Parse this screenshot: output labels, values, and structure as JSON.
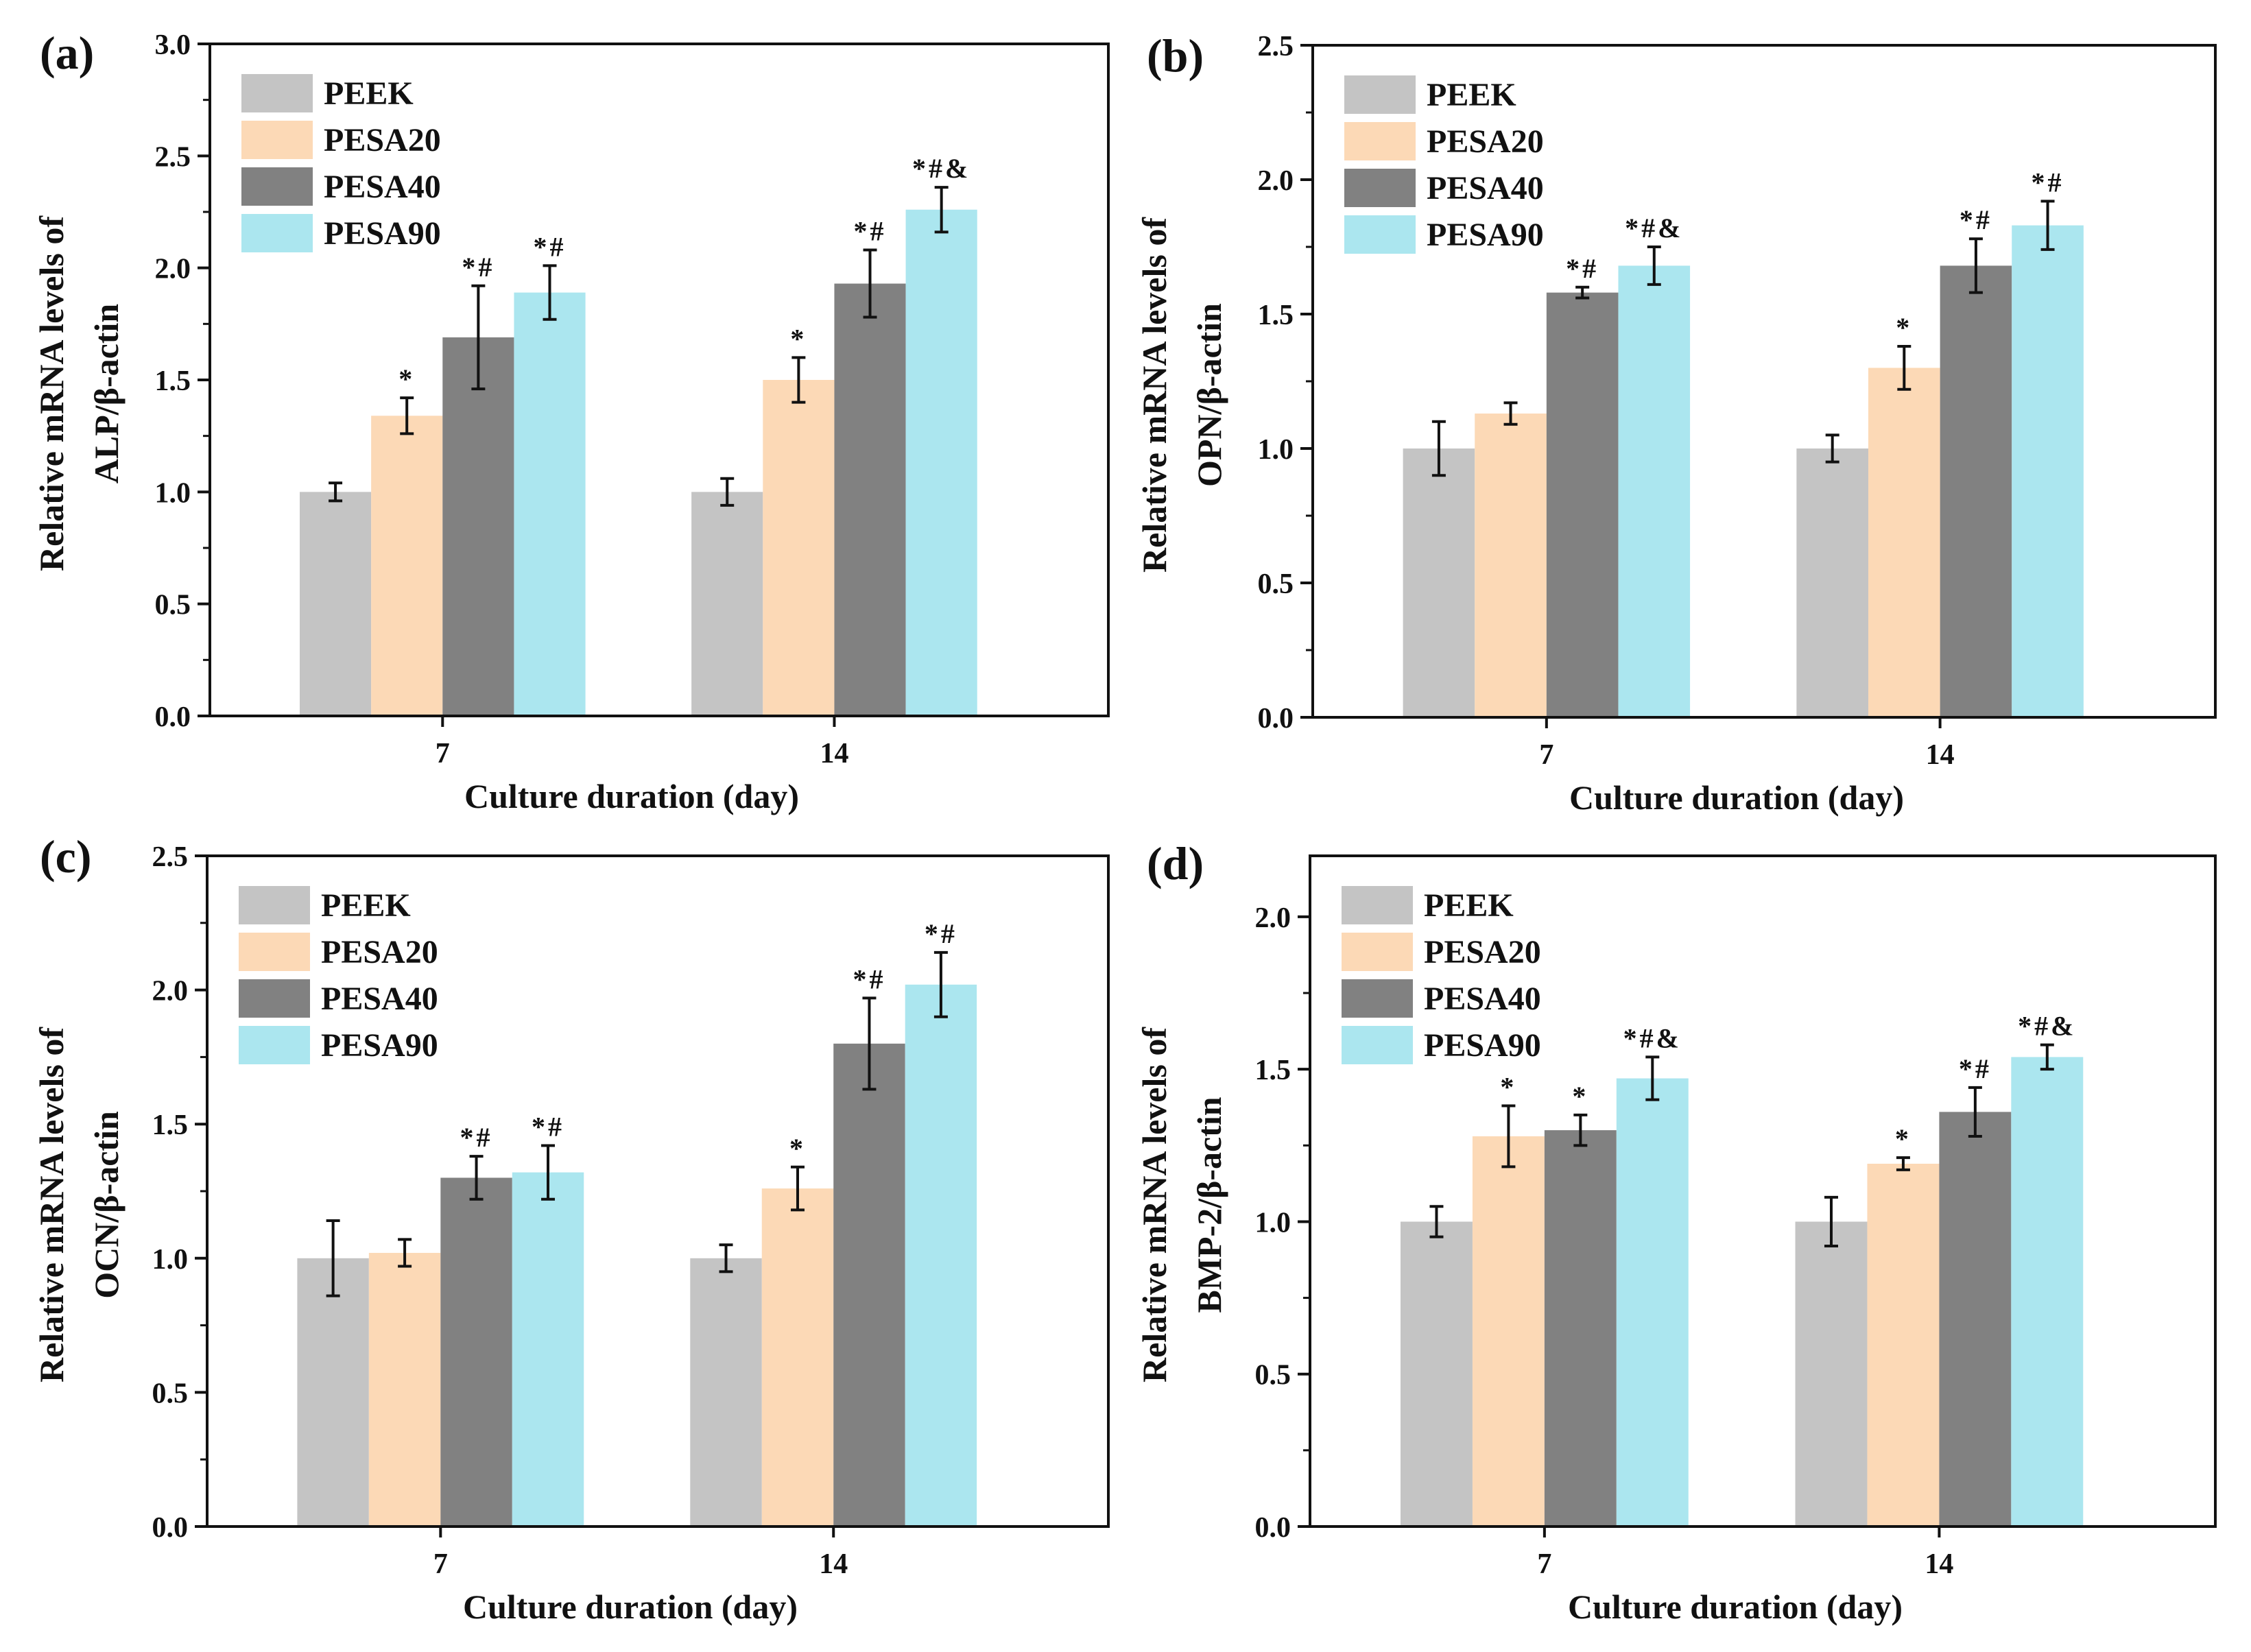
{
  "figure": {
    "colors": {
      "PEEK": "#c4c4c4",
      "PESA20": "#fcd9b6",
      "PESA40": "#818181",
      "PESA90": "#abe6ef",
      "axis": "#111111"
    }
  },
  "chart_data": [
    {
      "type": "bar",
      "panel": "(a)",
      "ylabel_line1": "Relative mRNA levels of",
      "ylabel_line2": "ALP/β-actin",
      "xlabel": "Culture duration (day)",
      "categories": [
        "7",
        "14"
      ],
      "ylim": [
        0,
        3.0
      ],
      "yticks": [
        0,
        0.5,
        1.0,
        1.5,
        2.0,
        2.5,
        3.0
      ],
      "ytick_labels": [
        "0.0",
        "0.5",
        "1.0",
        "1.5",
        "2.0",
        "2.5",
        "3.0"
      ],
      "series": [
        {
          "name": "PEEK",
          "values": [
            1.0,
            1.0
          ],
          "errors": [
            0.04,
            0.06
          ],
          "annotations": [
            "",
            ""
          ]
        },
        {
          "name": "PESA20",
          "values": [
            1.34,
            1.5
          ],
          "errors": [
            0.08,
            0.1
          ],
          "annotations": [
            "*",
            "*"
          ]
        },
        {
          "name": "PESA40",
          "values": [
            1.69,
            1.93
          ],
          "errors": [
            0.23,
            0.15
          ],
          "annotations": [
            "*#",
            "*#"
          ]
        },
        {
          "name": "PESA90",
          "values": [
            1.89,
            2.26
          ],
          "errors": [
            0.12,
            0.1
          ],
          "annotations": [
            "*#",
            "*#&"
          ]
        }
      ]
    },
    {
      "type": "bar",
      "panel": "(b)",
      "ylabel_line1": "Relative mRNA levels of",
      "ylabel_line2": "OPN/β-actin",
      "xlabel": "Culture duration (day)",
      "categories": [
        "7",
        "14"
      ],
      "ylim": [
        0,
        2.5
      ],
      "yticks": [
        0,
        0.5,
        1.0,
        1.5,
        2.0,
        2.5
      ],
      "ytick_labels": [
        "0.0",
        "0.5",
        "1.0",
        "1.5",
        "2.0",
        "2.5"
      ],
      "series": [
        {
          "name": "PEEK",
          "values": [
            1.0,
            1.0
          ],
          "errors": [
            0.1,
            0.05
          ],
          "annotations": [
            "",
            ""
          ]
        },
        {
          "name": "PESA20",
          "values": [
            1.13,
            1.3
          ],
          "errors": [
            0.04,
            0.08
          ],
          "annotations": [
            "",
            "*"
          ]
        },
        {
          "name": "PESA40",
          "values": [
            1.58,
            1.68
          ],
          "errors": [
            0.02,
            0.1
          ],
          "annotations": [
            "*#",
            "*#"
          ]
        },
        {
          "name": "PESA90",
          "values": [
            1.68,
            1.83
          ],
          "errors": [
            0.07,
            0.09
          ],
          "annotations": [
            "*#&",
            "*#"
          ]
        }
      ]
    },
    {
      "type": "bar",
      "panel": "(c)",
      "ylabel_line1": "Relative mRNA levels of",
      "ylabel_line2": "OCN/β-actin",
      "xlabel": "Culture duration (day)",
      "categories": [
        "7",
        "14"
      ],
      "ylim": [
        0,
        2.5
      ],
      "yticks": [
        0,
        0.5,
        1.0,
        1.5,
        2.0,
        2.5
      ],
      "ytick_labels": [
        "0.0",
        "0.5",
        "1.0",
        "1.5",
        "2.0",
        "2.5"
      ],
      "series": [
        {
          "name": "PEEK",
          "values": [
            1.0,
            1.0
          ],
          "errors": [
            0.14,
            0.05
          ],
          "annotations": [
            "",
            ""
          ]
        },
        {
          "name": "PESA20",
          "values": [
            1.02,
            1.26
          ],
          "errors": [
            0.05,
            0.08
          ],
          "annotations": [
            "",
            "*"
          ]
        },
        {
          "name": "PESA40",
          "values": [
            1.3,
            1.8
          ],
          "errors": [
            0.08,
            0.17
          ],
          "annotations": [
            "*#",
            "*#"
          ]
        },
        {
          "name": "PESA90",
          "values": [
            1.32,
            2.02
          ],
          "errors": [
            0.1,
            0.12
          ],
          "annotations": [
            "*#",
            "*#"
          ]
        }
      ]
    },
    {
      "type": "bar",
      "panel": "(d)",
      "ylabel_line1": "Relative mRNA levels of",
      "ylabel_line2": "BMP-2/β-actin",
      "xlabel": "Culture duration (day)",
      "categories": [
        "7",
        "14"
      ],
      "ylim": [
        0,
        2.2
      ],
      "yticks": [
        0,
        0.5,
        1.0,
        1.5,
        2.0
      ],
      "ytick_labels": [
        "0.0",
        "0.5",
        "1.0",
        "1.5",
        "2.0"
      ],
      "series": [
        {
          "name": "PEEK",
          "values": [
            1.0,
            1.0
          ],
          "errors": [
            0.05,
            0.08
          ],
          "annotations": [
            "",
            ""
          ]
        },
        {
          "name": "PESA20",
          "values": [
            1.28,
            1.19
          ],
          "errors": [
            0.1,
            0.02
          ],
          "annotations": [
            "*",
            "*"
          ]
        },
        {
          "name": "PESA40",
          "values": [
            1.3,
            1.36
          ],
          "errors": [
            0.05,
            0.08
          ],
          "annotations": [
            "*",
            "*#"
          ]
        },
        {
          "name": "PESA90",
          "values": [
            1.47,
            1.54
          ],
          "errors": [
            0.07,
            0.04
          ],
          "annotations": [
            "*#&",
            "*#&"
          ]
        }
      ]
    }
  ]
}
